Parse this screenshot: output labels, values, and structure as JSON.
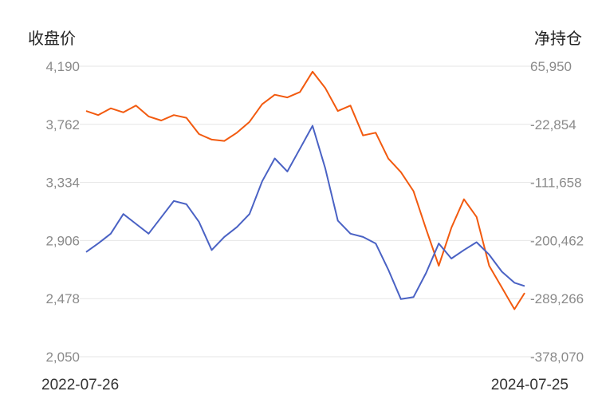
{
  "chart_data": {
    "type": "line",
    "title": "",
    "ylabel_left": "收盘价",
    "ylabel_right": "净持仓",
    "x_range": [
      "2022-07-26",
      "2024-07-25"
    ],
    "x_tick_labels": [
      "2022-07-26",
      "2024-07-25"
    ],
    "ylim_left": [
      2050,
      4190
    ],
    "ylim_right": [
      -378070,
      65950
    ],
    "left_ticks": [
      "4,190",
      "3,762",
      "3,334",
      "2,906",
      "2,478",
      "2,050"
    ],
    "right_ticks": [
      "65,950",
      "-22,854",
      "-111,658",
      "-200,462",
      "-289,266",
      "-378,070"
    ],
    "grid": true,
    "legend": "none",
    "series": [
      {
        "axis": "left",
        "color": "#f25a0f",
        "x": [
          "2022-07-26",
          "2022-08-15",
          "2022-09-05",
          "2022-09-26",
          "2022-10-17",
          "2022-11-07",
          "2022-11-28",
          "2022-12-19",
          "2023-01-09",
          "2023-01-30",
          "2023-02-20",
          "2023-03-13",
          "2023-04-03",
          "2023-04-24",
          "2023-05-15",
          "2023-06-05",
          "2023-06-26",
          "2023-07-17",
          "2023-08-07",
          "2023-08-28",
          "2023-09-18",
          "2023-10-09",
          "2023-10-30",
          "2023-11-20",
          "2023-12-11",
          "2024-01-01",
          "2024-01-22",
          "2024-02-12",
          "2024-03-04",
          "2024-03-25",
          "2024-04-15",
          "2024-05-06",
          "2024-05-27",
          "2024-06-17",
          "2024-07-08",
          "2024-07-25"
        ],
        "values": [
          3860,
          3830,
          3880,
          3850,
          3900,
          3820,
          3790,
          3830,
          3810,
          3690,
          3650,
          3640,
          3700,
          3780,
          3910,
          3980,
          3960,
          4000,
          4150,
          4030,
          3860,
          3900,
          3680,
          3700,
          3510,
          3410,
          3270,
          2990,
          2720,
          3000,
          3210,
          3080,
          2720,
          2560,
          2400,
          2520
        ]
      },
      {
        "axis": "right",
        "color": "#4a62c4",
        "x": [
          "2022-07-26",
          "2022-08-15",
          "2022-09-05",
          "2022-09-26",
          "2022-10-17",
          "2022-11-07",
          "2022-11-28",
          "2022-12-19",
          "2023-01-09",
          "2023-01-30",
          "2023-02-20",
          "2023-03-13",
          "2023-04-03",
          "2023-04-24",
          "2023-05-15",
          "2023-06-05",
          "2023-06-26",
          "2023-07-17",
          "2023-08-07",
          "2023-08-28",
          "2023-09-18",
          "2023-10-09",
          "2023-10-30",
          "2023-11-20",
          "2023-12-11",
          "2024-01-01",
          "2024-01-22",
          "2024-02-12",
          "2024-03-04",
          "2024-03-25",
          "2024-04-15",
          "2024-05-06",
          "2024-05-27",
          "2024-06-17",
          "2024-07-08",
          "2024-07-25"
        ],
        "values": [
          -218000,
          -205000,
          -190000,
          -160000,
          -175000,
          -190000,
          -165000,
          -140000,
          -145000,
          -172000,
          -215000,
          -195000,
          -180000,
          -160000,
          -110000,
          -75000,
          -95000,
          -60000,
          -25000,
          -90000,
          -170000,
          -190000,
          -195000,
          -205000,
          -245000,
          -290000,
          -287000,
          -250000,
          -205000,
          -228000,
          -215000,
          -203000,
          -222000,
          -248000,
          -265000,
          -270000
        ]
      }
    ]
  }
}
